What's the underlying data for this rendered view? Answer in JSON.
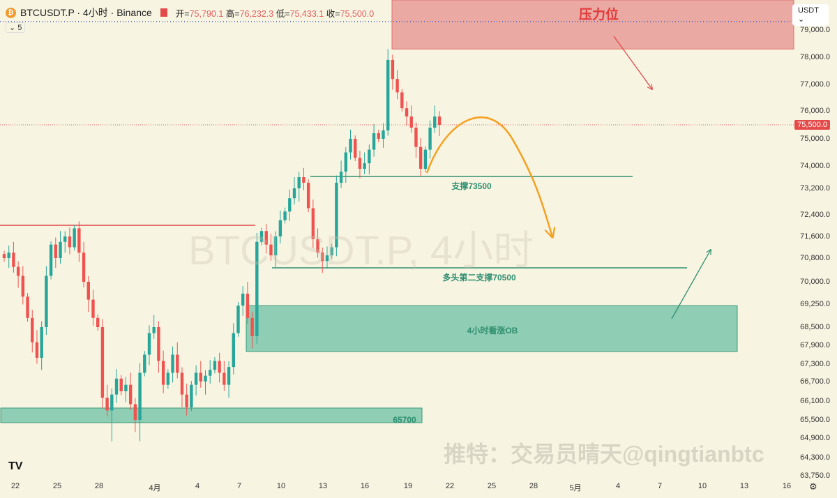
{
  "header": {
    "symbol": "BTCUSDT.P · 4小时 · Binance",
    "coin_icon": "₿",
    "open_label": "开=",
    "open": "75,790.1",
    "high_label": "高=",
    "high": "76,232.3",
    "low_label": "低=",
    "low": "75,433.1",
    "close_label": "收=",
    "close": "75,500.0",
    "indicator_toggle": "⌄ 5"
  },
  "currency": "USDT ⌄",
  "current_price": "75,500.0",
  "watermark": "BTCUSDT.P, 4小时",
  "credit": "推特：交易员晴天@qingtianbtc",
  "logo": "TV",
  "annotations": {
    "resistance": "压力位",
    "support1": "支撑73500",
    "support2": "多头第二支撑70500",
    "ob": "4小时看涨OB",
    "zone": "65700"
  },
  "colors": {
    "up": "#26a69a",
    "down": "#ef5350",
    "red_zone": "#eaa9a2",
    "green_zone": "#8fcdb4",
    "orange": "#f5a020"
  },
  "chart_data": {
    "type": "candlestick",
    "timeframe": "4h (rendered as 8h aggregated closes)",
    "y_ticks": [
      "79,000.0",
      "78,000.0",
      "77,000.0",
      "76,000.0",
      "75,000.0",
      "74,000.0",
      "73,200.0",
      "72,400.0",
      "71,600.0",
      "70,800.0",
      "70,000.0",
      "69,250.0",
      "68,500.0",
      "67,900.0",
      "67,300.0",
      "66,700.0",
      "66,100.0",
      "65,500.0",
      "64,900.0",
      "64,300.0",
      "63,750.0"
    ],
    "x_ticks": [
      "22",
      "25",
      "28",
      "4月",
      "4",
      "7",
      "10",
      "13",
      "16",
      "19",
      "22",
      "25",
      "28",
      "5月",
      "4",
      "7",
      "10",
      "13",
      "16"
    ],
    "closes": [
      70800,
      71000,
      70500,
      70200,
      69500,
      68800,
      68000,
      67500,
      68500,
      70200,
      71300,
      70800,
      71400,
      71600,
      71200,
      71900,
      71000,
      70000,
      69400,
      68800,
      68500,
      66200,
      65800,
      66300,
      66800,
      66400,
      66600,
      66000,
      65500,
      67000,
      67600,
      68300,
      68500,
      67400,
      66600,
      67000,
      67600,
      67000,
      66300,
      65900,
      66600,
      67000,
      66700,
      66900,
      67100,
      67400,
      67000,
      66600,
      67200,
      68300,
      69200,
      69600,
      68800,
      68200,
      71400,
      71800,
      71300,
      70900,
      71600,
      72200,
      72500,
      72900,
      73200,
      73600,
      73400,
      72600,
      71500,
      71000,
      70700,
      70900,
      71200,
      73400,
      73800,
      74500,
      75000,
      74300,
      73900,
      74100,
      74600,
      75200,
      75000,
      75300,
      77900,
      77200,
      76700,
      76100,
      75800,
      75400,
      74700,
      73900,
      74600,
      75400,
      75800,
      75500
    ],
    "levels": {
      "resistance_zone": [
        78300,
        80000
      ],
      "support": 73500,
      "second_support": 70500,
      "ob_zone": [
        67700,
        69200
      ],
      "low_zone": [
        65300,
        65700
      ],
      "prior_high": 71950
    }
  }
}
